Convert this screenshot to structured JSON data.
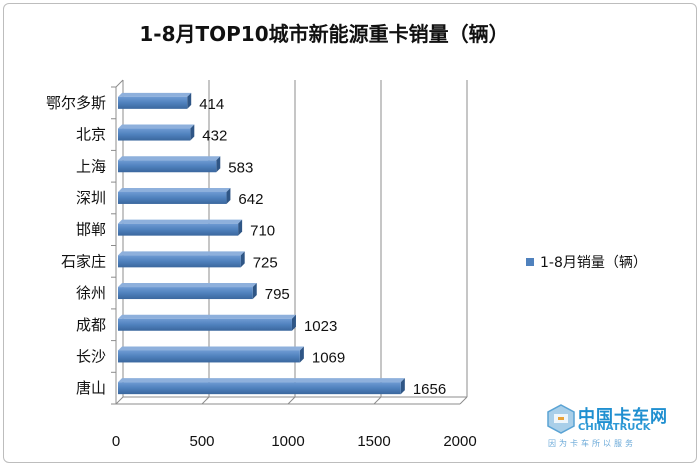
{
  "chart_data": {
    "type": "bar",
    "orientation": "horizontal",
    "title": "1-8月TOP10城市新能源重卡销量（辆）",
    "categories": [
      "鄂尔多斯",
      "北京",
      "上海",
      "深圳",
      "邯郸",
      "石家庄",
      "徐州",
      "成都",
      "长沙",
      "唐山"
    ],
    "series": [
      {
        "name": "1-8月销量（辆）",
        "values": [
          414,
          432,
          583,
          642,
          710,
          725,
          795,
          1023,
          1069,
          1656
        ]
      }
    ],
    "xlim": [
      0,
      2000
    ],
    "xticks": [
      "0",
      "500",
      "1000",
      "1500",
      "2000"
    ],
    "grid": "vertical",
    "legend": "right",
    "bar_color": "#4f81bd"
  },
  "watermark": {
    "cn": "中国卡车网",
    "en": "CHINATRUCK",
    "sub": "因为卡车所以服务"
  }
}
